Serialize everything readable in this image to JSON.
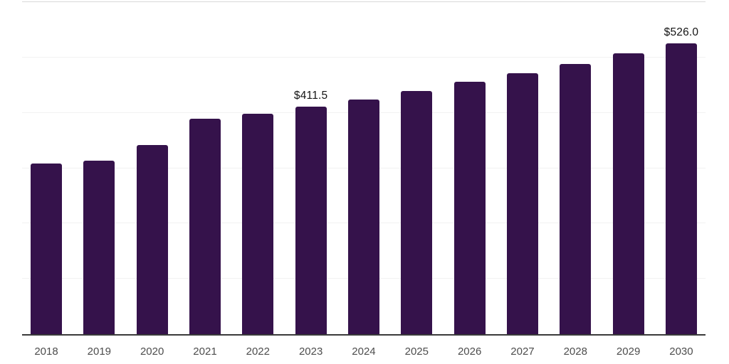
{
  "chart_data": {
    "type": "bar",
    "title": "",
    "xlabel": "",
    "ylabel": "",
    "categories": [
      "2018",
      "2019",
      "2020",
      "2021",
      "2022",
      "2023",
      "2024",
      "2025",
      "2026",
      "2027",
      "2028",
      "2029",
      "2030"
    ],
    "values": [
      309,
      313,
      342,
      389,
      398,
      411.5,
      424,
      440,
      456,
      471,
      488,
      508,
      526
    ],
    "value_labels": {
      "2023": "$411.5",
      "2030": "$526.0"
    },
    "ylim": [
      0,
      600
    ],
    "gridline_values": [
      100,
      200,
      300,
      400,
      500,
      600
    ],
    "grid": "on",
    "legend": "none",
    "bar_color": "#35124b",
    "axis_line_color": "#3a3a3a",
    "gridline_color": "#f1f1f1",
    "top_gridline_color": "#d9d9d9",
    "tick_label_color": "#4d4d4d",
    "value_label_color": "#141414"
  }
}
